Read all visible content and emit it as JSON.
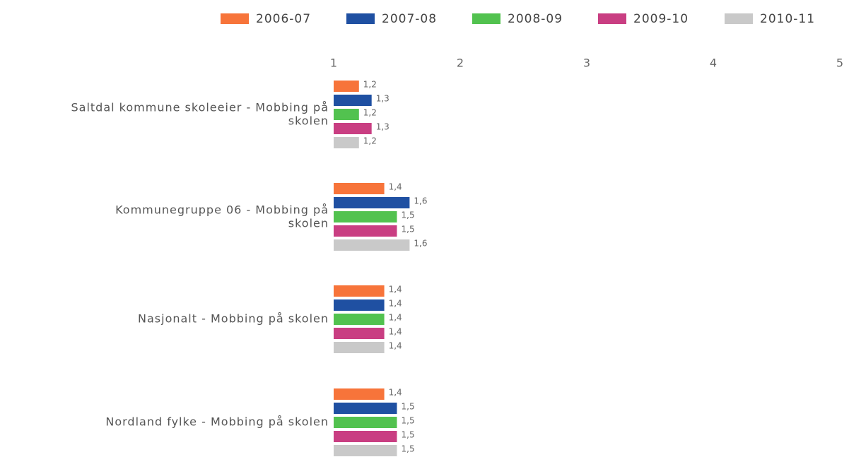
{
  "chart_data": {
    "type": "hbar",
    "categories": [
      "Saltdal kommune skoleeier - Mobbing på skolen",
      "Kommunegruppe 06 - Mobbing på skolen",
      "Nasjonalt - Mobbing på skolen",
      "Nordland fylke - Mobbing på skolen"
    ],
    "series": [
      {
        "name": "2006-07",
        "color": "#f7743a",
        "values": [
          1.2,
          1.4,
          1.4,
          1.4
        ],
        "value_labels": [
          "1,2",
          "1,4",
          "1,4",
          "1,4"
        ]
      },
      {
        "name": "2007-08",
        "color": "#1f50a2",
        "values": [
          1.3,
          1.6,
          1.4,
          1.5
        ],
        "value_labels": [
          "1,3",
          "1,6",
          "1,4",
          "1,5"
        ]
      },
      {
        "name": "2008-09",
        "color": "#52c24f",
        "values": [
          1.2,
          1.5,
          1.4,
          1.5
        ],
        "value_labels": [
          "1,2",
          "1,5",
          "1,4",
          "1,5"
        ]
      },
      {
        "name": "2009-10",
        "color": "#c93e82",
        "values": [
          1.3,
          1.5,
          1.4,
          1.5
        ],
        "value_labels": [
          "1,3",
          "1,5",
          "1,4",
          "1,5"
        ]
      },
      {
        "name": "2010-11",
        "color": "#c9c9c9",
        "values": [
          1.2,
          1.6,
          1.4,
          1.5
        ],
        "value_labels": [
          "1,2",
          "1,6",
          "1,4",
          "1,5"
        ]
      }
    ],
    "xlim": [
      1,
      5
    ],
    "xticks": [
      1,
      2,
      3,
      4,
      5
    ],
    "legend": "top"
  }
}
